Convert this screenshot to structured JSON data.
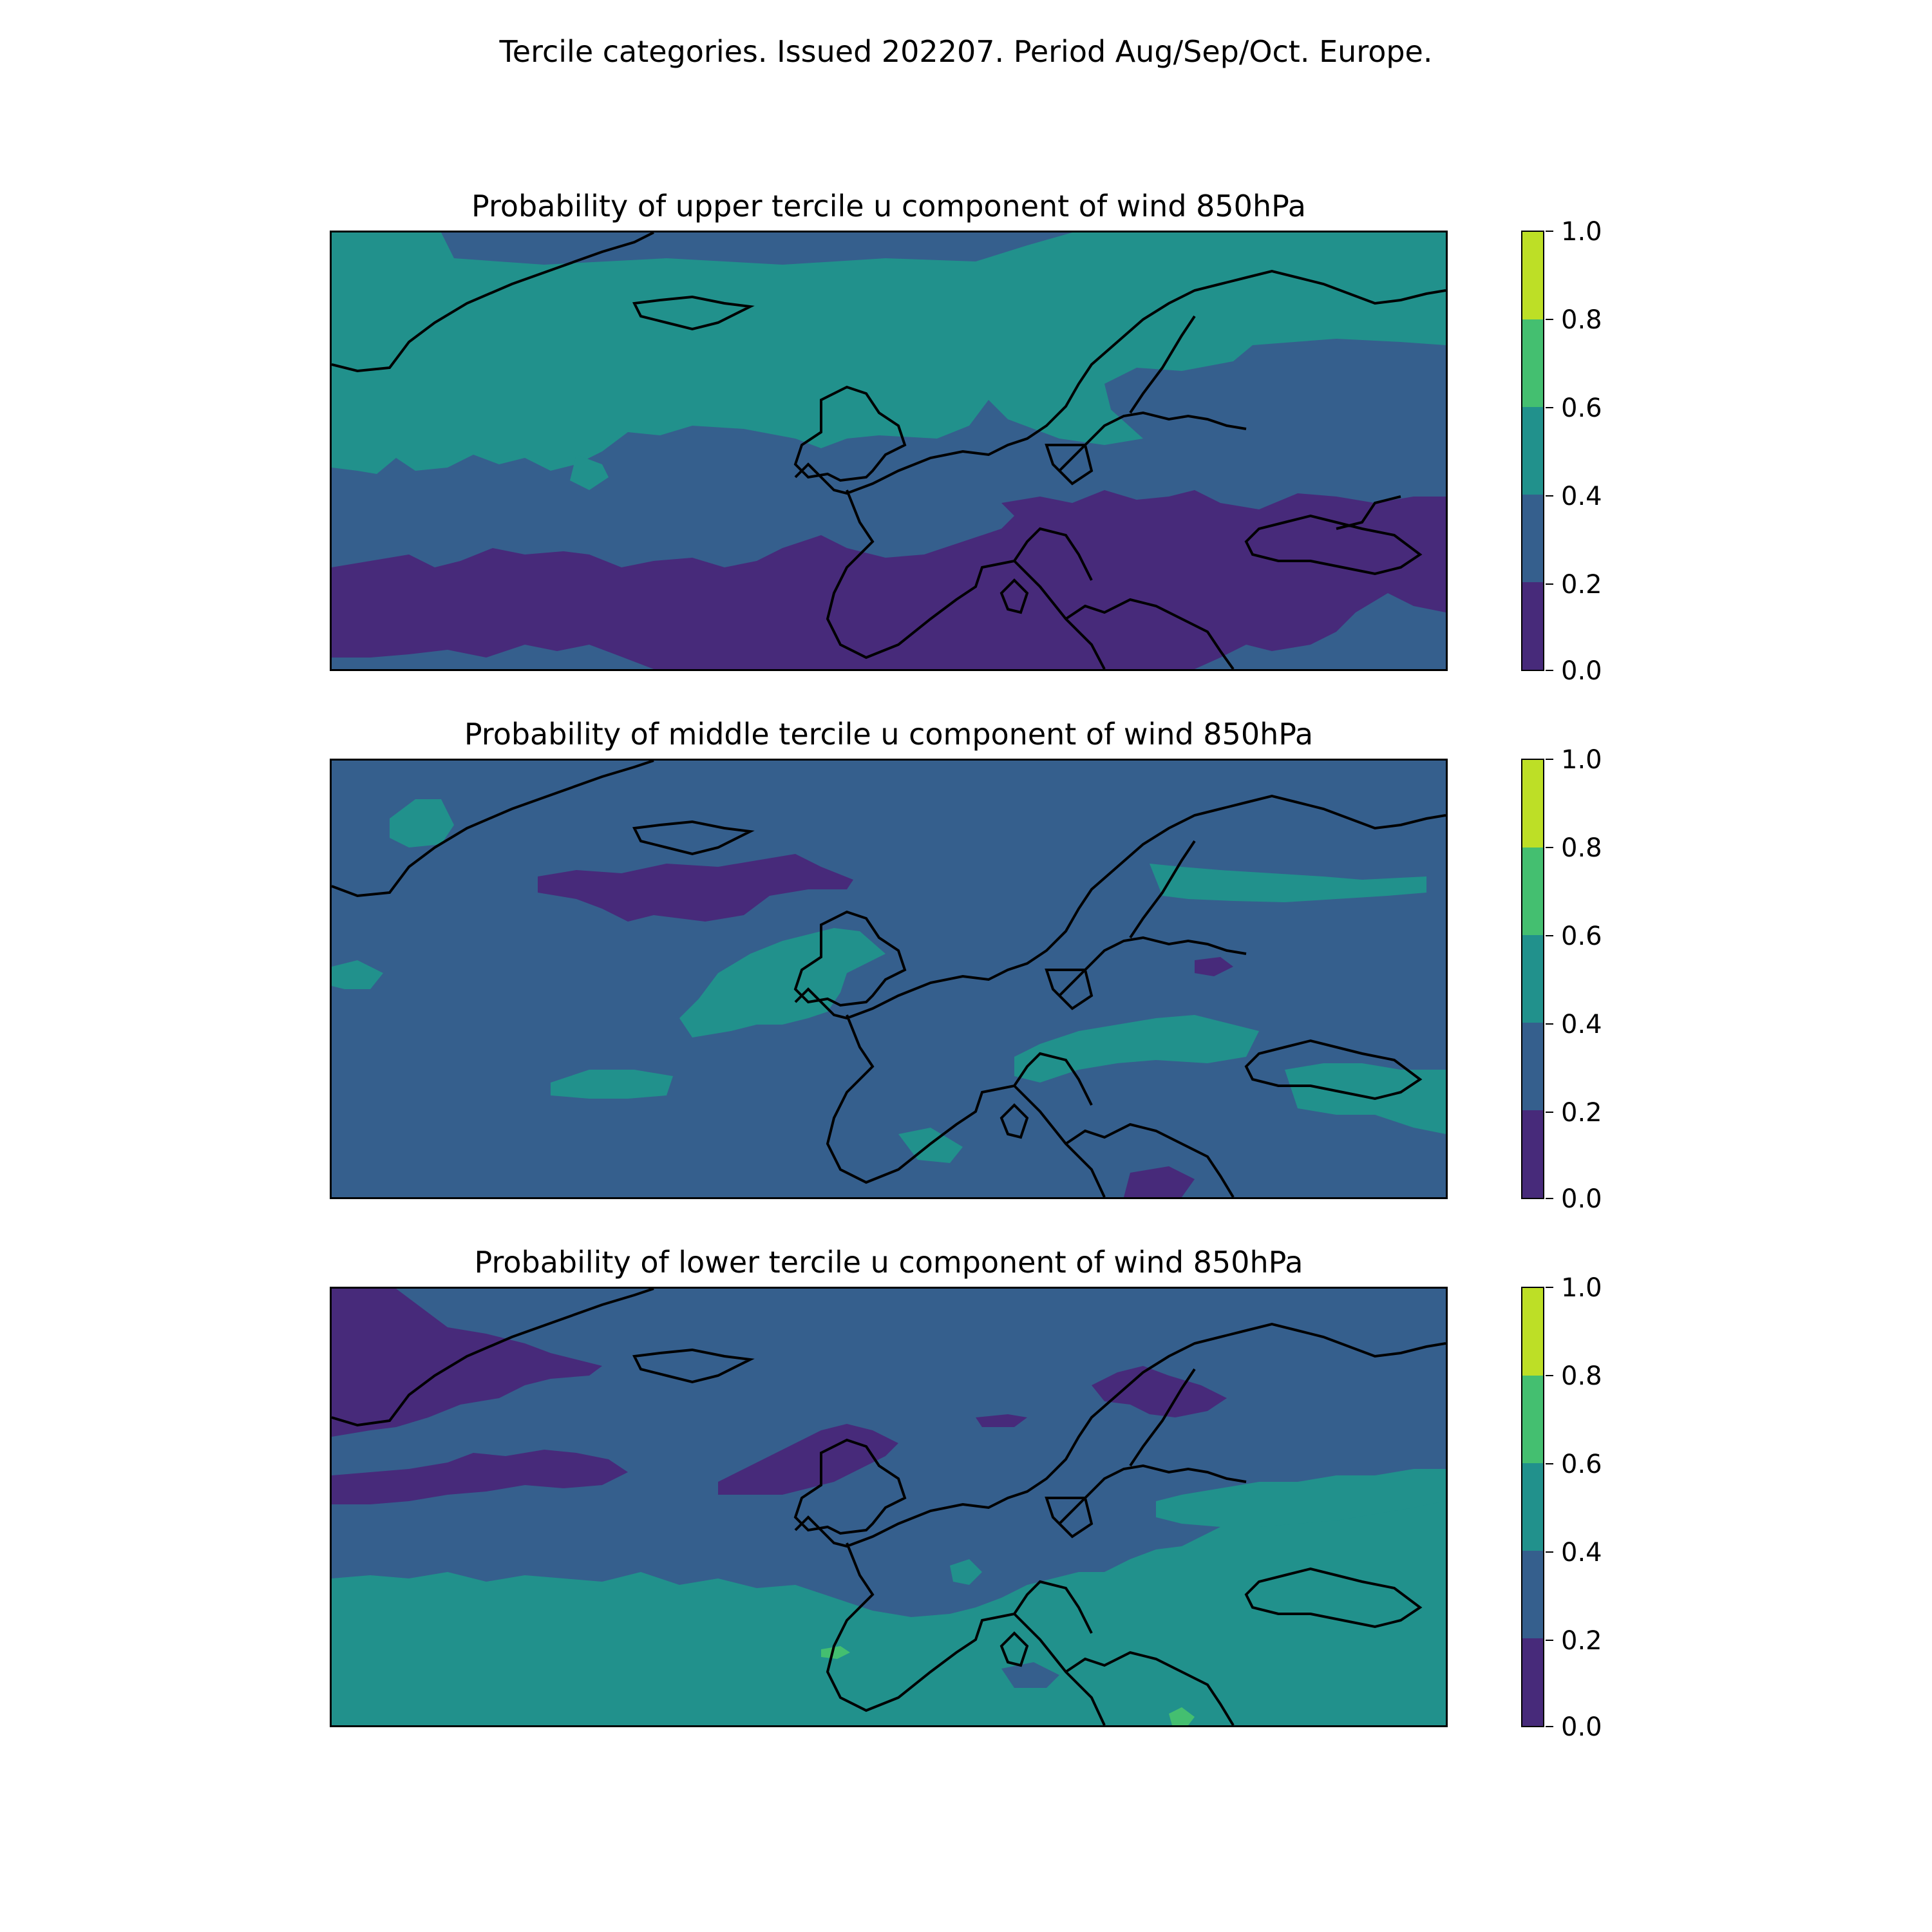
{
  "suptitle": "Tercile categories. Issued 202207. Period Aug/Sep/Oct. Europe.",
  "colorbar": {
    "ticks": [
      "0.0",
      "0.2",
      "0.4",
      "0.6",
      "0.8",
      "1.0"
    ],
    "levels": [
      0.0,
      0.2,
      0.4,
      0.6,
      0.8,
      1.0
    ],
    "colors": [
      "#440154",
      "#414487",
      "#2a788e",
      "#22a884",
      "#7ad151",
      "#fde725"
    ],
    "bin_colors": [
      "#472a7a",
      "#355f8d",
      "#21918c",
      "#44bf70",
      "#bddf26"
    ]
  },
  "panels": [
    {
      "title": "Probability of upper tercile u component of wind 850hPa",
      "variable": "upper tercile",
      "dominant_bin": "0.2-0.4",
      "features": [
        "0.4-0.6 over Greenland, North Atlantic and Scandinavia",
        "0.0-0.2 over Iberia, Mediterranean and Black Sea region"
      ]
    },
    {
      "title": "Probability of middle tercile u component of wind 850hPa",
      "variable": "middle tercile",
      "dominant_bin": "0.2-0.4",
      "features": [
        "0.4-0.6 patches near British Isles, Baltic and Black Sea",
        "0.0-0.2 band south of Iceland"
      ]
    },
    {
      "title": "Probability of lower tercile u component of wind 850hPa",
      "variable": "lower tercile",
      "dominant_bin": "0.2-0.4",
      "features": [
        "0.4-0.6 over southern Europe, Mediterranean and subtropical Atlantic",
        "0.0-0.2 over Greenland, North Sea and Gulf of Bothnia"
      ]
    }
  ]
}
